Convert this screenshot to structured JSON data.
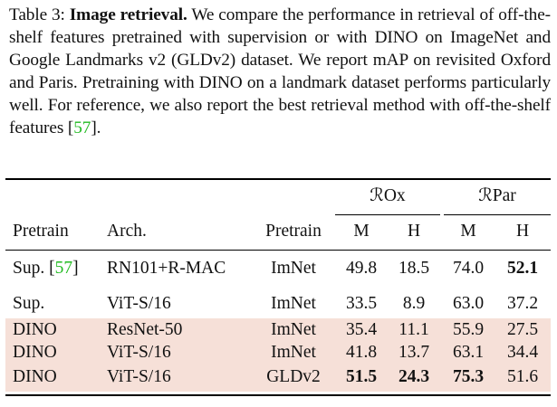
{
  "caption": {
    "prefix": "Table 3: ",
    "title": "Image retrieval.",
    "text_1": " We compare the performance in retrieval of off-the-shelf features pretrained with supervision or with DINO on ImageNet and Google Landmarks v2 (GLDv2) dataset.  We report mAP on revisited Oxford and Paris. Pretraining with DINO on a landmark dataset performs particularly well. For reference, we also report the best retrieval method with off-the-shelf features [",
    "citation": "57",
    "text_2": "]."
  },
  "table": {
    "group_headers": [
      "ℛOx",
      "ℛPar"
    ],
    "columns": [
      "Pretrain",
      "Arch.",
      "Pretrain",
      "M",
      "H",
      "M",
      "H"
    ],
    "rows": [
      {
        "c0": "Sup. [",
        "cite": "57",
        "c0_end": "]",
        "arch": "RN101+R-MAC",
        "data": "ImNet",
        "rox_m": "49.8",
        "rox_h": "18.5",
        "rpar_m": "74.0",
        "rpar_h": "52.1",
        "highlight": false
      },
      {
        "c0": "Sup.",
        "arch": "ViT-S/16",
        "data": "ImNet",
        "rox_m": "33.5",
        "rox_h": "8.9",
        "rpar_m": "63.0",
        "rpar_h": "37.2",
        "highlight": false
      },
      {
        "c0": "DINO",
        "arch": "ResNet-50",
        "data": "ImNet",
        "rox_m": "35.4",
        "rox_h": "11.1",
        "rpar_m": "55.9",
        "rpar_h": "27.5",
        "highlight": true
      },
      {
        "c0": "DINO",
        "arch": "ViT-S/16",
        "data": "ImNet",
        "rox_m": "41.8",
        "rox_h": "13.7",
        "rpar_m": "63.1",
        "rpar_h": "34.4",
        "highlight": true
      },
      {
        "c0": "DINO",
        "arch": "ViT-S/16",
        "data": "GLDv2",
        "rox_m": "51.5",
        "rox_h": "24.3",
        "rpar_m": "75.3",
        "rpar_h": "51.6",
        "highlight": true
      }
    ],
    "highlight_color": "#f6e0d8",
    "citation_color": "#22bb22"
  }
}
